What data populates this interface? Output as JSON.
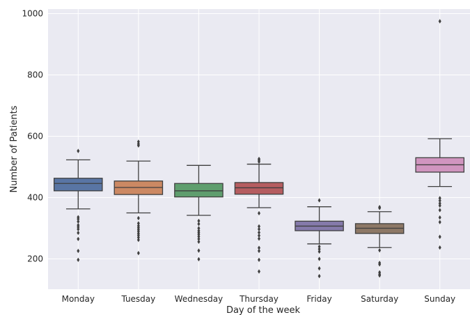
{
  "chart_data": {
    "type": "boxplot",
    "xlabel": "Day of the week",
    "ylabel": "Number of Patients",
    "ylim": [
      100,
      1010
    ],
    "yticks": [
      200,
      400,
      600,
      800,
      1000
    ],
    "grid": true,
    "categories": [
      "Monday",
      "Tuesday",
      "Wednesday",
      "Thursday",
      "Friday",
      "Saturday",
      "Sunday"
    ],
    "colors": [
      "#5975a4",
      "#cc8963",
      "#5f9e6e",
      "#b55d60",
      "#857aab",
      "#8d7866",
      "#d095bf"
    ],
    "boxes": [
      {
        "whislo": 363,
        "q1": 422,
        "med": 446,
        "q3": 463,
        "whishi": 523,
        "fliers": [
          552,
          336,
          330,
          322,
          310,
          304,
          297,
          285,
          265,
          226,
          197
        ]
      },
      {
        "whislo": 350,
        "q1": 410,
        "med": 433,
        "q3": 454,
        "whishi": 519,
        "fliers": [
          582,
          575,
          570,
          333,
          316,
          308,
          302,
          296,
          290,
          283,
          277,
          270,
          262,
          219
        ]
      },
      {
        "whislo": 342,
        "q1": 402,
        "med": 422,
        "q3": 446,
        "whishi": 505,
        "fliers": [
          324,
          314,
          300,
          292,
          286,
          280,
          273,
          265,
          256,
          227,
          199
        ]
      },
      {
        "whislo": 367,
        "q1": 411,
        "med": 432,
        "q3": 449,
        "whishi": 509,
        "fliers": [
          526,
          522,
          517,
          349,
          306,
          297,
          286,
          276,
          266,
          236,
          226,
          197,
          159
        ]
      },
      {
        "whislo": 249,
        "q1": 292,
        "med": 307,
        "q3": 323,
        "whishi": 370,
        "fliers": [
          391,
          240,
          232,
          224,
          200,
          169,
          144
        ]
      },
      {
        "whislo": 237,
        "q1": 283,
        "med": 300,
        "q3": 315,
        "whishi": 354,
        "fliers": [
          369,
          366,
          228,
          187,
          182,
          156,
          150,
          146
        ]
      },
      {
        "whislo": 436,
        "q1": 483,
        "med": 507,
        "q3": 530,
        "whishi": 592,
        "fliers": [
          975,
          398,
          390,
          381,
          374,
          359,
          335,
          320,
          272,
          237
        ]
      }
    ]
  }
}
